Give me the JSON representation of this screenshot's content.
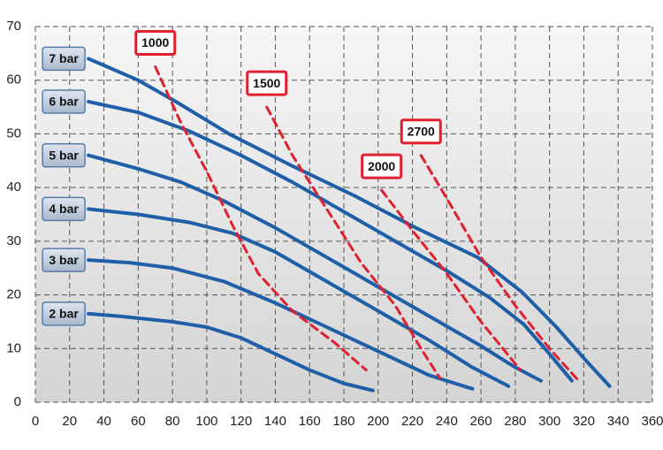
{
  "chart_data": {
    "type": "line",
    "xlim": [
      0,
      360
    ],
    "xticks": [
      0,
      20,
      40,
      60,
      80,
      100,
      120,
      140,
      160,
      180,
      200,
      220,
      240,
      260,
      280,
      300,
      320,
      340,
      360
    ],
    "ylim": [
      0,
      70
    ],
    "yticks": [
      0,
      10,
      20,
      30,
      40,
      50,
      60,
      70
    ],
    "grid": true,
    "series": [
      {
        "name": "2 bar",
        "color": "#1f5fa8",
        "x": [
          31,
          50,
          80,
          100,
          120,
          140,
          160,
          180,
          197
        ],
        "values": [
          16.5,
          16,
          15,
          14,
          12,
          9,
          6,
          3.5,
          2.2
        ]
      },
      {
        "name": "3 bar",
        "color": "#1f5fa8",
        "x": [
          31,
          55,
          80,
          110,
          140,
          170,
          200,
          230,
          255
        ],
        "values": [
          26.5,
          26,
          25,
          22.5,
          18.5,
          14,
          9.5,
          5,
          2.5
        ]
      },
      {
        "name": "4 bar",
        "color": "#1f5fa8",
        "x": [
          31,
          60,
          90,
          115,
          140,
          170,
          200,
          230,
          255,
          276
        ],
        "values": [
          36,
          35,
          33.5,
          31.5,
          28,
          22.5,
          17,
          11.5,
          6.5,
          3
        ]
      },
      {
        "name": "5 bar",
        "color": "#1f5fa8",
        "x": [
          31,
          60,
          85,
          110,
          140,
          170,
          200,
          230,
          260,
          280,
          295
        ],
        "values": [
          46,
          43.5,
          41,
          37.5,
          32.5,
          27,
          21.5,
          16,
          10.5,
          6.5,
          4
        ]
      },
      {
        "name": "6 bar",
        "color": "#1f5fa8",
        "x": [
          31,
          60,
          90,
          120,
          150,
          180,
          210,
          240,
          265,
          285,
          300,
          313
        ],
        "values": [
          56,
          54,
          50.5,
          46,
          41,
          35.5,
          30,
          24.5,
          19.5,
          14.5,
          9,
          4
        ]
      },
      {
        "name": "7 bar",
        "color": "#1f5fa8",
        "x": [
          31,
          60,
          82,
          113,
          150,
          186,
          222,
          258,
          284,
          304,
          322,
          335
        ],
        "values": [
          64,
          60,
          56,
          50,
          44,
          38.5,
          32.5,
          27,
          20.5,
          14,
          7.5,
          3
        ]
      },
      {
        "name": "1000",
        "color": "#e0202e",
        "dashed": true,
        "x": [
          70,
          85,
          100,
          115,
          130,
          150,
          175,
          193
        ],
        "values": [
          62.5,
          52,
          43,
          33,
          24,
          17,
          11,
          6
        ]
      },
      {
        "name": "1500",
        "color": "#e0202e",
        "dashed": true,
        "x": [
          135,
          150,
          170,
          190,
          210,
          225,
          236
        ],
        "values": [
          55,
          46,
          36,
          26,
          18,
          10,
          4.5
        ]
      },
      {
        "name": "2000",
        "color": "#e0202e",
        "dashed": true,
        "x": [
          202,
          220,
          240,
          260,
          283
        ],
        "values": [
          39.5,
          32,
          24,
          15,
          6
        ]
      },
      {
        "name": "2700",
        "color": "#e0202e",
        "dashed": true,
        "x": [
          225,
          240,
          260,
          280,
          300,
          317
        ],
        "values": [
          46,
          38,
          27,
          18,
          10,
          4
        ]
      }
    ]
  }
}
